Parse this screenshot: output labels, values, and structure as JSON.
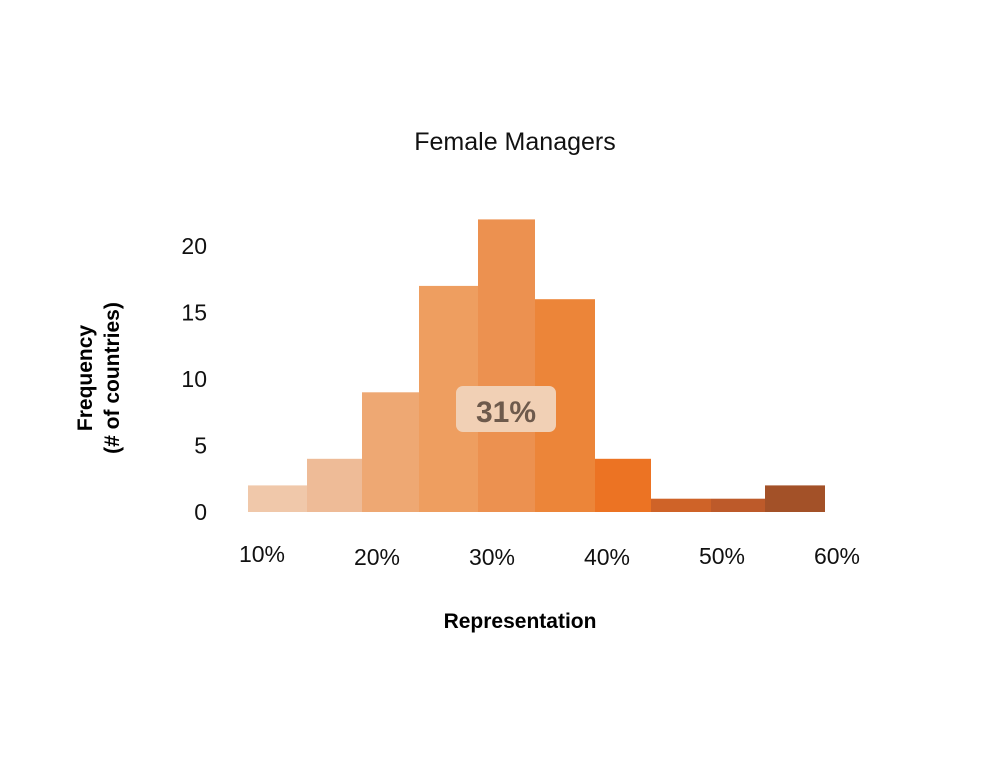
{
  "chart_data": {
    "type": "bar",
    "title": "Female Managers",
    "xlabel": "Representation",
    "ylabel_lines": [
      "Frequency",
      "(# of countries)"
    ],
    "x_ticks": [
      "10%",
      "20%",
      "30%",
      "40%",
      "50%",
      "60%"
    ],
    "y_ticks": [
      "0",
      "5",
      "10",
      "15",
      "20"
    ],
    "ylim": [
      0,
      22
    ],
    "grid": false,
    "bins": [
      {
        "value": 2,
        "color": "#f0c8aa"
      },
      {
        "value": 4,
        "color": "#eebb97"
      },
      {
        "value": 9,
        "color": "#eea873"
      },
      {
        "value": 17,
        "color": "#ee9e60"
      },
      {
        "value": 22,
        "color": "#ec9150"
      },
      {
        "value": 16,
        "color": "#ec8539"
      },
      {
        "value": 4,
        "color": "#ec7323"
      },
      {
        "value": 1,
        "color": "#cf6328"
      },
      {
        "value": 1,
        "color": "#bd5a2a"
      },
      {
        "value": 2,
        "color": "#a35128"
      }
    ],
    "callout": {
      "text": "31%",
      "background": "#f1d0b5",
      "text_color": "#6e5a4c"
    }
  }
}
